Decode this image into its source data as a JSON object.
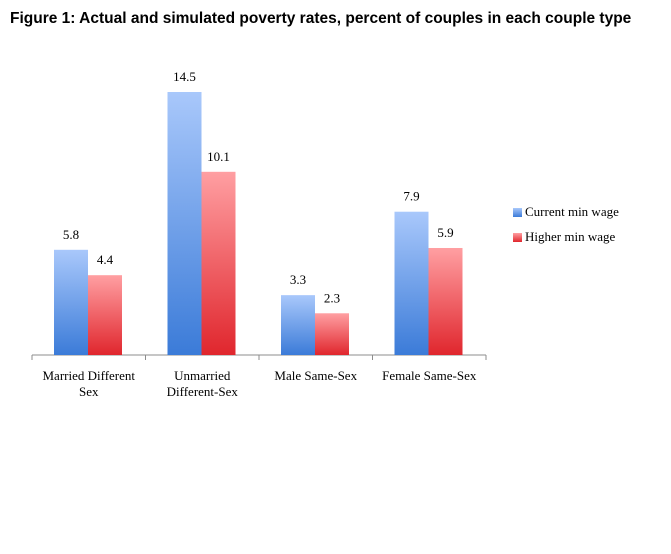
{
  "title": "Figure 1: Actual and simulated poverty rates, percent of couples in each couple type",
  "chart_data": {
    "type": "bar",
    "title": "Figure 1: Actual and simulated poverty rates, percent of couples in each couple type",
    "categories": [
      [
        "Married Different",
        "Sex"
      ],
      [
        "Unmarried",
        "Different-Sex"
      ],
      [
        "Male Same-Sex"
      ],
      [
        "Female Same-Sex"
      ]
    ],
    "series": [
      {
        "name": "Current min wage",
        "values": [
          5.8,
          14.5,
          3.3,
          7.9
        ],
        "color": "#4a86d8"
      },
      {
        "name": "Higher min wage",
        "values": [
          4.4,
          10.1,
          2.3,
          5.9
        ],
        "color": "#e8333a"
      }
    ],
    "xlabel": "",
    "ylabel": "",
    "ylim": [
      0,
      14.5
    ],
    "grid": false,
    "legend": "right"
  }
}
